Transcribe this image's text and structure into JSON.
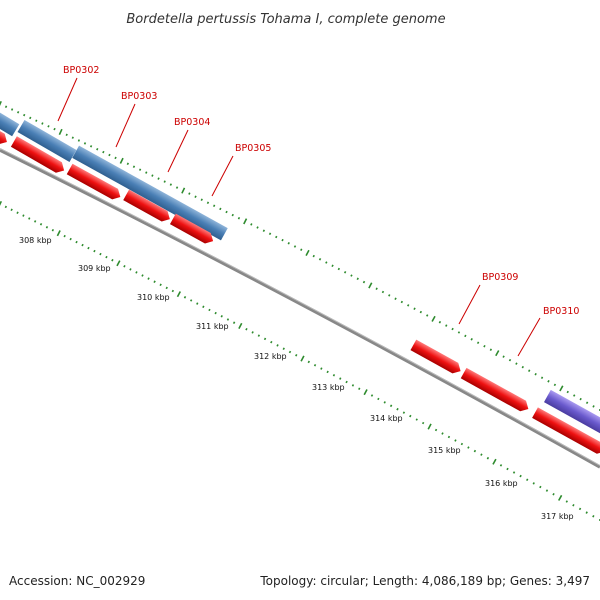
{
  "header": {
    "title": "Bordetella pertussis Tohama I, complete genome"
  },
  "footer": {
    "accession": "Accession: NC_002929",
    "summary": "Topology: circular; Length: 4,086,189 bp; Genes: 3,497"
  },
  "gene_labels": [
    "BP0302",
    "BP0303",
    "BP0304",
    "BP0305",
    "BP0309",
    "BP0310"
  ],
  "tick_labels": [
    "308 kbp",
    "309 kbp",
    "310 kbp",
    "311 kbp",
    "312 kbp",
    "313 kbp",
    "314 kbp",
    "315 kbp",
    "316 kbp",
    "317 kbp"
  ],
  "colors": {
    "cds": "#ee1111",
    "gene": "#4a7fb5",
    "other_feature": "#6a5acd",
    "backbone": "#888888",
    "ticks": "#2e8b2e",
    "label_line": "#cc0000"
  }
}
